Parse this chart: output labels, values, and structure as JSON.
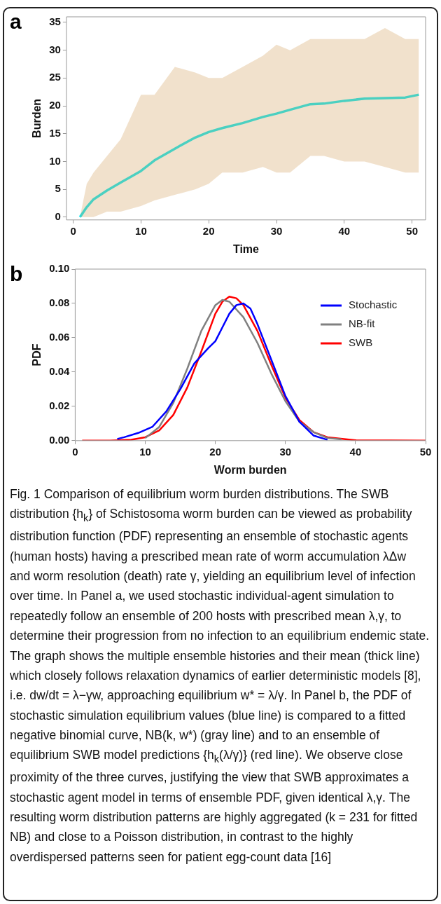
{
  "chart_data": [
    {
      "type": "line",
      "title": "a",
      "xlabel": "Time",
      "ylabel": "Burden",
      "xlim": [
        -1,
        52
      ],
      "ylim": [
        -0.5,
        36
      ],
      "xticks": [
        0,
        10,
        20,
        30,
        40,
        50
      ],
      "yticks": [
        0,
        5,
        10,
        15,
        20,
        25,
        30,
        35
      ],
      "x": [
        1,
        2,
        3,
        5,
        7,
        10,
        12,
        15,
        18,
        20,
        22,
        25,
        28,
        30,
        32,
        35,
        37,
        40,
        43,
        46,
        49,
        51
      ],
      "series": [
        {
          "color": "#00e5ee",
          "values": [
            0,
            1.8,
            3.2,
            4.8,
            6.2,
            8.3,
            10.2,
            12.3,
            14.3,
            15.3,
            16.0,
            16.9,
            18.0,
            18.6,
            19.3,
            20.3,
            20.4,
            20.9,
            21.3,
            21.4,
            21.5,
            22.0
          ],
          "lower": [
            0,
            0,
            0,
            1,
            1,
            2,
            3,
            4,
            5,
            6,
            8,
            8,
            9,
            8,
            8,
            11,
            11,
            10,
            10,
            9,
            8,
            8
          ],
          "upper": [
            0,
            6,
            8,
            11,
            14,
            22,
            22,
            27,
            26,
            25,
            25,
            27,
            29,
            31,
            30,
            32,
            32,
            32,
            32,
            34,
            32,
            32
          ]
        }
      ]
    },
    {
      "type": "line",
      "title": "b",
      "xlabel": "Worm burden",
      "ylabel": "PDF",
      "xlim": [
        0,
        50
      ],
      "ylim": [
        0,
        0.1
      ],
      "xticks": [
        0,
        10,
        20,
        30,
        40,
        50
      ],
      "yticks": [
        {
          "value": 0,
          "label": "0.00"
        },
        {
          "value": 0.02,
          "label": "0.02"
        },
        {
          "value": 0.04,
          "label": "0.04"
        },
        {
          "value": 0.06,
          "label": "0.06"
        },
        {
          "value": 0.08,
          "label": "0.08"
        },
        {
          "value": 0.1,
          "label": "0.10"
        }
      ],
      "legend": "top right",
      "series": [
        {
          "name": "Stochastic",
          "color": "#0000ff",
          "x": [
            6,
            7,
            9,
            11,
            13,
            15,
            17,
            19,
            20,
            21,
            22,
            23,
            24,
            25,
            26,
            28,
            30,
            32,
            34,
            36
          ],
          "values": [
            0.001,
            0.002,
            0.0045,
            0.008,
            0.017,
            0.03,
            0.045,
            0.054,
            0.058,
            0.066,
            0.074,
            0.079,
            0.08,
            0.077,
            0.068,
            0.047,
            0.026,
            0.011,
            0.003,
            0.0005
          ]
        },
        {
          "name": "NB-fit",
          "color": "#808080",
          "x": [
            10,
            12,
            14,
            16,
            18,
            20,
            21,
            22,
            24,
            26,
            28,
            30,
            32,
            34,
            36,
            38
          ],
          "values": [
            0.0015,
            0.008,
            0.022,
            0.042,
            0.064,
            0.079,
            0.082,
            0.081,
            0.072,
            0.057,
            0.039,
            0.023,
            0.011,
            0.005,
            0.0015,
            0.0007
          ]
        },
        {
          "name": "SWB",
          "color": "#ff0000",
          "x": [
            1,
            5,
            8,
            10,
            12,
            14,
            16,
            18,
            20,
            21,
            22,
            23,
            24,
            26,
            28,
            30,
            32,
            34,
            36,
            40,
            50
          ],
          "values": [
            0,
            0,
            0.0005,
            0.002,
            0.006,
            0.015,
            0.031,
            0.052,
            0.074,
            0.081,
            0.084,
            0.083,
            0.079,
            0.064,
            0.044,
            0.025,
            0.012,
            0.005,
            0.002,
            0.0002,
            0
          ]
        }
      ],
      "annotations": [
        "Fig. 1 Comparison of equilibrium worm burden distributions. The SWB distribution {h$_{k}$} of Schistosoma worm burden can be viewed as probability distribution function (PDF) representing an ensemble of stochastic agents (human hosts) having a prescribed mean rate of worm accumulation λΔw and worm resolution (death) rate γ, yielding an equilibrium level of infection over time. In Panel a, we used stochastic individual-agent simulation to repeatedly follow an ensemble of 200 hosts with prescribed mean λ,γ, to determine their progression from no infection to an equilibrium endemic state. The graph shows the multiple ensemble histories and their mean (thick line) which closely follows relaxation dynamics of earlier deterministic models [8], i.e. dw/dt = λ−γw, approaching equilibrium w* = λ/γ. In Panel b, the PDF of stochastic simulation equilibrium values (blue line) is compared to a fitted negative binomial curve, NB(k, w*) (gray line) and to an ensemble of equilibrium SWB model predictions {h$_{k}$(λ/γ)} (red line). We observe close proximity of the three curves, justifying the view that SWB approximates a stochastic agent model in terms of ensemble PDF, given identical λ,γ. The resulting worm distribution patterns are highly aggregated (k = 231 for fitted NB) and close to a Poisson distribution, in contrast to the highly overdispersed patterns seen for patient egg-count data [16]"
      ]
    }
  ]
}
